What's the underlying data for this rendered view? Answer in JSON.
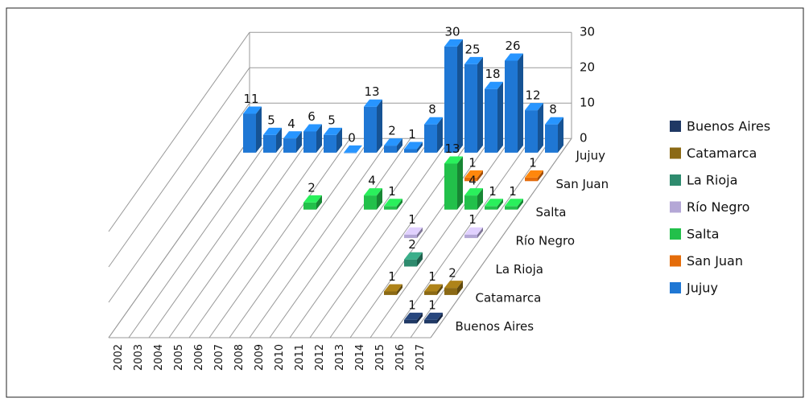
{
  "chart_data": {
    "type": "bar3d",
    "categories": [
      "2002",
      "2003",
      "2004",
      "2005",
      "2006",
      "2007",
      "2008",
      "2009",
      "2010",
      "2011",
      "2012",
      "2013",
      "2014",
      "2015",
      "2016",
      "2017"
    ],
    "series": [
      {
        "name": "Buenos Aires",
        "color": "#1f3864",
        "values": [
          null,
          null,
          null,
          null,
          null,
          null,
          null,
          null,
          null,
          null,
          null,
          null,
          null,
          null,
          1,
          1
        ]
      },
      {
        "name": "Catamarca",
        "color": "#8b6914",
        "values": [
          null,
          null,
          null,
          null,
          null,
          null,
          null,
          null,
          null,
          null,
          null,
          null,
          1,
          null,
          1,
          2
        ]
      },
      {
        "name": "La Rioja",
        "color": "#2e8b6e",
        "values": [
          null,
          null,
          null,
          null,
          null,
          null,
          null,
          null,
          null,
          null,
          null,
          null,
          2,
          null,
          null,
          null
        ]
      },
      {
        "name": "Río Negro",
        "color": "#b4a7d6",
        "values": [
          null,
          null,
          null,
          null,
          null,
          null,
          null,
          null,
          null,
          null,
          null,
          1,
          null,
          null,
          1,
          null
        ]
      },
      {
        "name": "Salta",
        "color": "#22c04a",
        "values": [
          null,
          null,
          null,
          null,
          null,
          2,
          null,
          null,
          4,
          1,
          null,
          null,
          13,
          4,
          1,
          1
        ]
      },
      {
        "name": "San Juan",
        "color": "#e46c0a",
        "values": [
          null,
          null,
          null,
          null,
          null,
          null,
          null,
          null,
          null,
          null,
          null,
          null,
          1,
          null,
          null,
          1
        ]
      },
      {
        "name": "Jujuy",
        "color": "#1f77d4",
        "values": [
          11,
          5,
          4,
          6,
          5,
          0,
          13,
          2,
          1,
          8,
          30,
          25,
          18,
          26,
          12,
          8
        ]
      }
    ],
    "zlim": [
      0,
      30
    ],
    "zticks": [
      0,
      10,
      20,
      30
    ],
    "grid": true,
    "legend": "right"
  }
}
